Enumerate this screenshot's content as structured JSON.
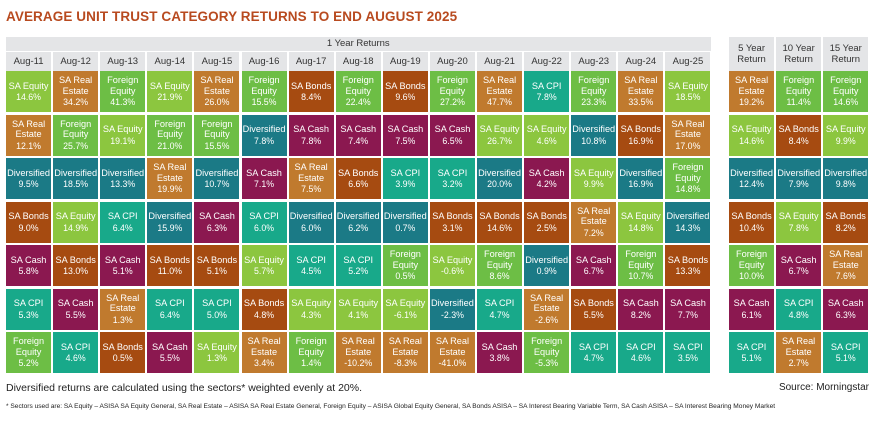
{
  "title": "AVERAGE UNIT TRUST CATEGORY RETURNS TO END AUGUST 2025",
  "footnote": "Diversified returns are calculated using the sectors* weighted evenly at 20%.",
  "source": "Source: Morningstar",
  "sectors_note": "* Sectors used are: SA Equity – ASISA SA Equity General, SA Real Estate – ASISA SA Real Estate General, Foreign Equity – ASISA Global Equity General, SA Bonds ASISA – SA Interest Bearing Variable Term, SA Cash ASISA – SA Interest Bearing Money Market",
  "colors": {
    "SA Equity": "#8cc63f",
    "SA Real Estate": "#c07a2e",
    "Foreign Equity": "#6dbe45",
    "SA Bonds": "#a64b11",
    "SA Cash": "#8b1850",
    "SA CPI": "#18a98a",
    "Diversified": "#1b7a86"
  },
  "chart_data": {
    "type": "table",
    "title": "AVERAGE UNIT TRUST CATEGORY RETURNS TO END AUGUST 2025",
    "group_label": "1 Year Returns",
    "columns": [
      "Aug-11",
      "Aug-12",
      "Aug-13",
      "Aug-14",
      "Aug-15",
      "Aug-16",
      "Aug-17",
      "Aug-18",
      "Aug-19",
      "Aug-20",
      "Aug-21",
      "Aug-22",
      "Aug-23",
      "Aug-24",
      "Aug-25",
      "5 Year Return",
      "10 Year Return",
      "15 Year Return"
    ],
    "ranking": [
      [
        [
          "SA Equity",
          "14.6%"
        ],
        [
          "SA Real Estate",
          "12.1%"
        ],
        [
          "Diversified",
          "9.5%"
        ],
        [
          "SA Bonds",
          "9.0%"
        ],
        [
          "SA Cash",
          "5.8%"
        ],
        [
          "SA CPI",
          "5.3%"
        ],
        [
          "Foreign Equity",
          "5.2%"
        ]
      ],
      [
        [
          "SA Real Estate",
          "34.2%"
        ],
        [
          "Foreign Equity",
          "25.7%"
        ],
        [
          "Diversified",
          "18.5%"
        ],
        [
          "SA Equity",
          "14.9%"
        ],
        [
          "SA Bonds",
          "13.0%"
        ],
        [
          "SA Cash",
          "5.5%"
        ],
        [
          "SA CPI",
          "4.6%"
        ]
      ],
      [
        [
          "Foreign Equity",
          "41.3%"
        ],
        [
          "SA Equity",
          "19.1%"
        ],
        [
          "Diversified",
          "13.3%"
        ],
        [
          "SA CPI",
          "6.4%"
        ],
        [
          "SA Cash",
          "5.1%"
        ],
        [
          "SA Real Estate",
          "1.3%"
        ],
        [
          "SA Bonds",
          "0.5%"
        ]
      ],
      [
        [
          "SA Equity",
          "21.9%"
        ],
        [
          "Foreign Equity",
          "21.0%"
        ],
        [
          "SA Real Estate",
          "19.9%"
        ],
        [
          "Diversified",
          "15.9%"
        ],
        [
          "SA Bonds",
          "11.0%"
        ],
        [
          "SA CPI",
          "6.4%"
        ],
        [
          "SA Cash",
          "5.5%"
        ]
      ],
      [
        [
          "SA Real Estate",
          "26.0%"
        ],
        [
          "Foreign Equity",
          "15.5%"
        ],
        [
          "Diversified",
          "10.7%"
        ],
        [
          "SA Cash",
          "6.3%"
        ],
        [
          "SA Bonds",
          "5.1%"
        ],
        [
          "SA CPI",
          "5.0%"
        ],
        [
          "SA Equity",
          "1.3%"
        ]
      ],
      [
        [
          "Foreign Equity",
          "15.5%"
        ],
        [
          "Diversified",
          "7.8%"
        ],
        [
          "SA Cash",
          "7.1%"
        ],
        [
          "SA CPI",
          "6.0%"
        ],
        [
          "SA Equity",
          "5.7%"
        ],
        [
          "SA Bonds",
          "4.8%"
        ],
        [
          "SA Real Estate",
          "3.4%"
        ]
      ],
      [
        [
          "SA Bonds",
          "8.4%"
        ],
        [
          "SA Cash",
          "7.8%"
        ],
        [
          "SA Real Estate",
          "7.5%"
        ],
        [
          "Diversified",
          "6.0%"
        ],
        [
          "SA CPI",
          "4.5%"
        ],
        [
          "SA Equity",
          "4.3%"
        ],
        [
          "Foreign Equity",
          "1.4%"
        ]
      ],
      [
        [
          "Foreign Equity",
          "22.4%"
        ],
        [
          "SA Cash",
          "7.4%"
        ],
        [
          "SA Bonds",
          "6.6%"
        ],
        [
          "Diversified",
          "6.2%"
        ],
        [
          "SA CPI",
          "5.2%"
        ],
        [
          "SA Equity",
          "4.1%"
        ],
        [
          "SA Real Estate",
          "-10.2%"
        ]
      ],
      [
        [
          "SA Bonds",
          "9.6%"
        ],
        [
          "SA Cash",
          "7.5%"
        ],
        [
          "SA CPI",
          "3.9%"
        ],
        [
          "Diversified",
          "0.7%"
        ],
        [
          "Foreign Equity",
          "0.5%"
        ],
        [
          "SA Equity",
          "-6.1%"
        ],
        [
          "SA Real Estate",
          "-8.3%"
        ]
      ],
      [
        [
          "Foreign Equity",
          "27.2%"
        ],
        [
          "SA Cash",
          "6.5%"
        ],
        [
          "SA CPI",
          "3.2%"
        ],
        [
          "SA Bonds",
          "3.1%"
        ],
        [
          "SA Equity",
          "-0.6%"
        ],
        [
          "Diversified",
          "-2.3%"
        ],
        [
          "SA Real Estate",
          "-41.0%"
        ]
      ],
      [
        [
          "SA Real Estate",
          "47.7%"
        ],
        [
          "SA Equity",
          "26.7%"
        ],
        [
          "Diversified",
          "20.0%"
        ],
        [
          "SA Bonds",
          "14.6%"
        ],
        [
          "Foreign Equity",
          "8.6%"
        ],
        [
          "SA CPI",
          "4.7%"
        ],
        [
          "SA Cash",
          "3.8%"
        ]
      ],
      [
        [
          "SA CPI",
          "7.8%"
        ],
        [
          "SA Equity",
          "4.6%"
        ],
        [
          "SA Cash",
          "4.2%"
        ],
        [
          "SA Bonds",
          "2.5%"
        ],
        [
          "Diversified",
          "0.9%"
        ],
        [
          "SA Real Estate",
          "-2.6%"
        ],
        [
          "Foreign Equity",
          "-5.3%"
        ]
      ],
      [
        [
          "Foreign Equity",
          "23.3%"
        ],
        [
          "Diversified",
          "10.8%"
        ],
        [
          "SA Equity",
          "9.9%"
        ],
        [
          "SA Real Estate",
          "7.2%"
        ],
        [
          "SA Cash",
          "6.7%"
        ],
        [
          "SA Bonds",
          "5.5%"
        ],
        [
          "SA CPI",
          "4.7%"
        ]
      ],
      [
        [
          "SA Real Estate",
          "33.5%"
        ],
        [
          "SA Bonds",
          "16.9%"
        ],
        [
          "Diversified",
          "16.9%"
        ],
        [
          "SA Equity",
          "14.8%"
        ],
        [
          "Foreign Equity",
          "10.7%"
        ],
        [
          "SA Cash",
          "8.2%"
        ],
        [
          "SA CPI",
          "4.6%"
        ]
      ],
      [
        [
          "SA Equity",
          "18.5%"
        ],
        [
          "SA Real Estate",
          "17.0%"
        ],
        [
          "Foreign Equity",
          "14.8%"
        ],
        [
          "Diversified",
          "14.3%"
        ],
        [
          "SA Bonds",
          "13.3%"
        ],
        [
          "SA Cash",
          "7.7%"
        ],
        [
          "SA CPI",
          "3.5%"
        ]
      ],
      [
        [
          "SA Real Estate",
          "19.2%"
        ],
        [
          "SA Equity",
          "14.6%"
        ],
        [
          "Diversified",
          "12.4%"
        ],
        [
          "SA Bonds",
          "10.4%"
        ],
        [
          "Foreign Equity",
          "10.0%"
        ],
        [
          "SA Cash",
          "6.1%"
        ],
        [
          "SA CPI",
          "5.1%"
        ]
      ],
      [
        [
          "Foreign Equity",
          "11.4%"
        ],
        [
          "SA Bonds",
          "8.4%"
        ],
        [
          "Diversified",
          "7.9%"
        ],
        [
          "SA Equity",
          "7.8%"
        ],
        [
          "SA Cash",
          "6.7%"
        ],
        [
          "SA CPI",
          "4.8%"
        ],
        [
          "SA Real Estate",
          "2.7%"
        ]
      ],
      [
        [
          "Foreign Equity",
          "14.6%"
        ],
        [
          "SA Equity",
          "9.9%"
        ],
        [
          "Diversified",
          "9.8%"
        ],
        [
          "SA Bonds",
          "8.2%"
        ],
        [
          "SA Real Estate",
          "7.6%"
        ],
        [
          "SA Cash",
          "6.3%"
        ],
        [
          "SA CPI",
          "5.1%"
        ]
      ]
    ]
  }
}
